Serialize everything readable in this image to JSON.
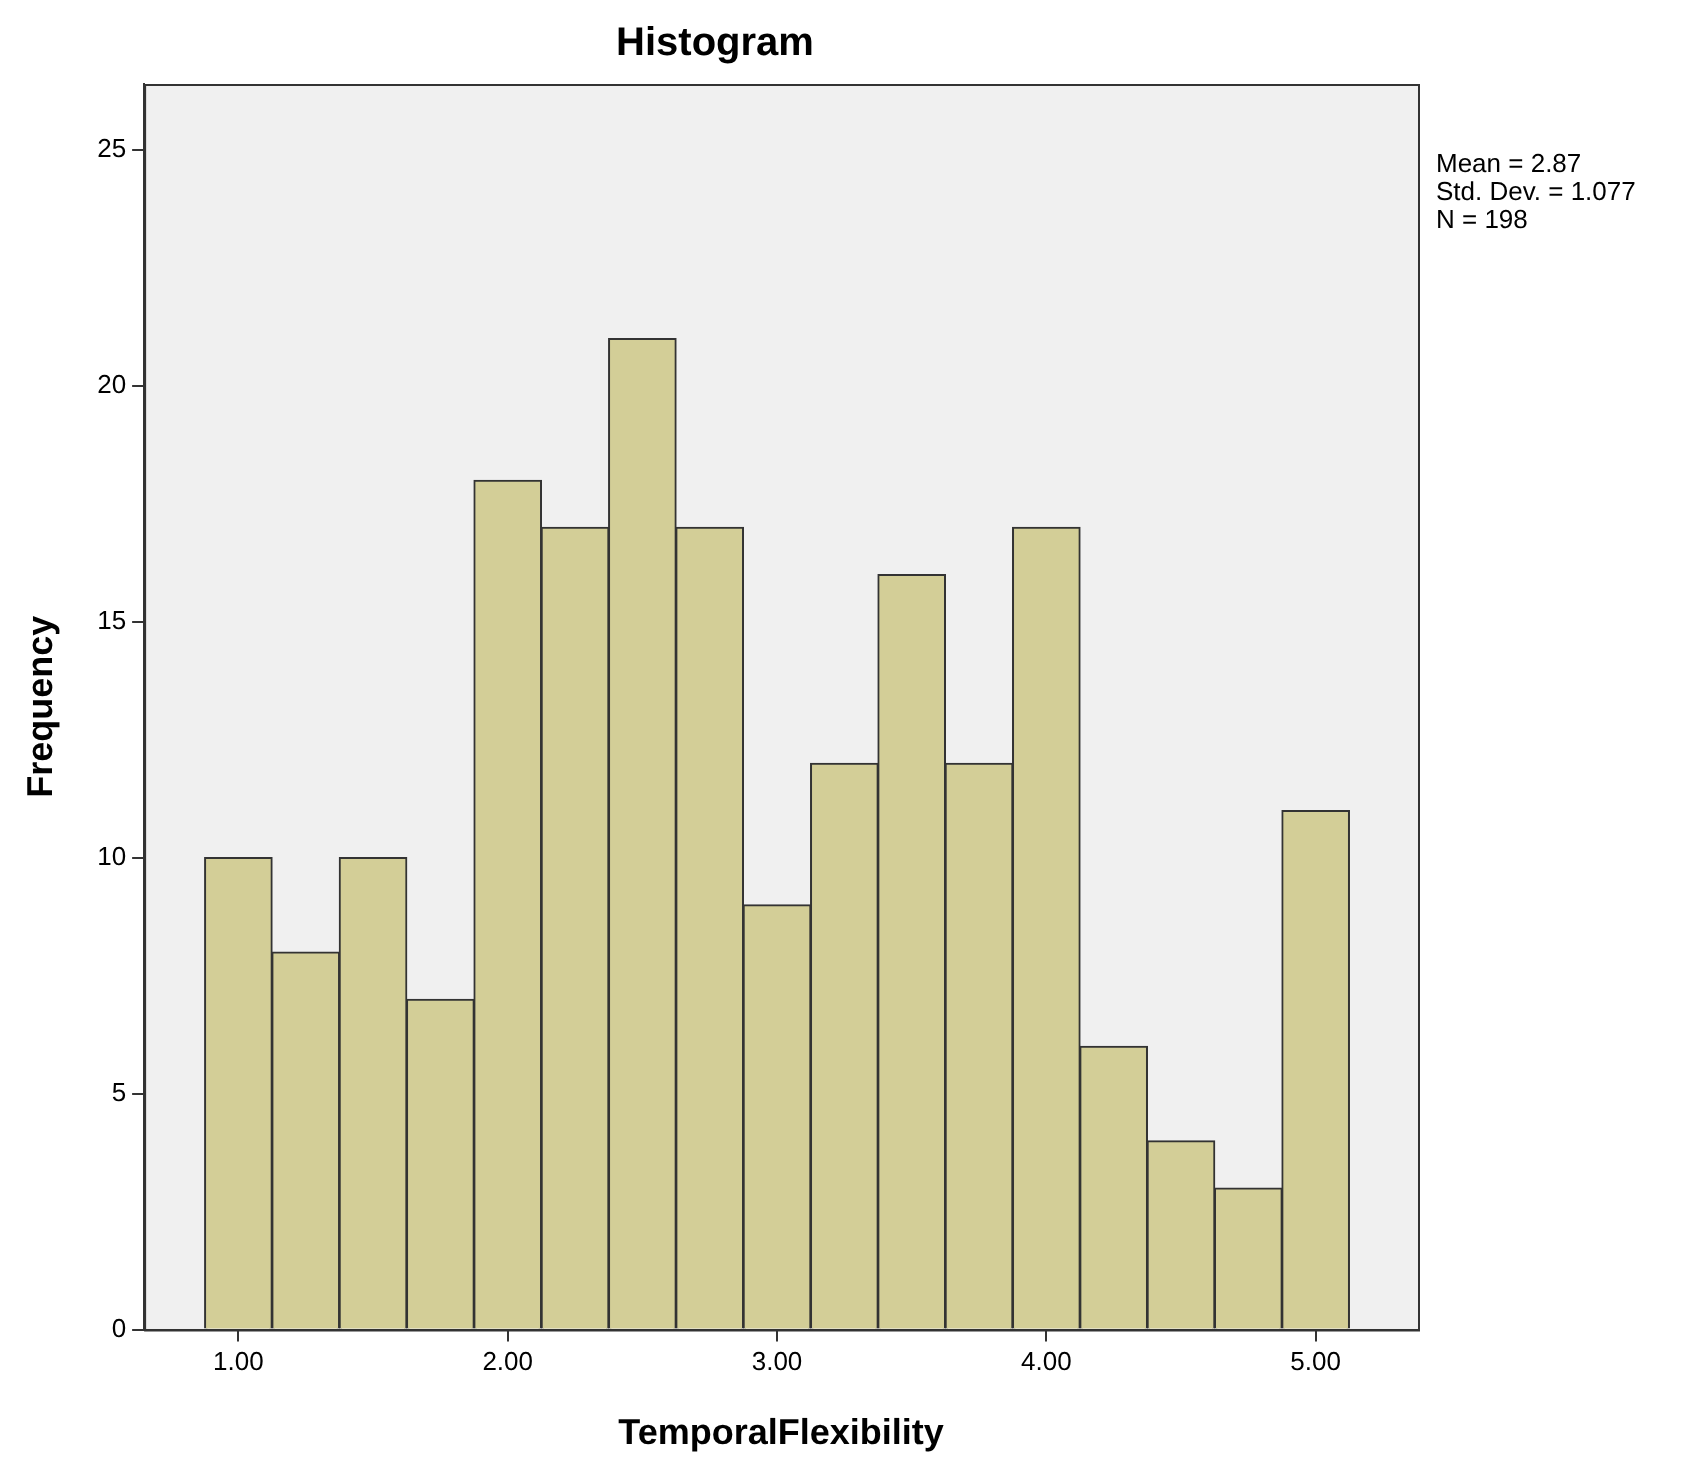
{
  "chart_data": {
    "type": "histogram",
    "title": "Histogram",
    "xlabel": "TemporalFlexibility",
    "ylabel": "Frequency",
    "bins": [
      0.875,
      1.125,
      1.375,
      1.625,
      1.875,
      2.125,
      2.375,
      2.625,
      2.875,
      3.125,
      3.375,
      3.625,
      3.875,
      4.125,
      4.375,
      4.625,
      4.875,
      5.125
    ],
    "values": [
      10,
      8,
      10,
      7,
      18,
      17,
      21,
      17,
      9,
      12,
      16,
      12,
      17,
      6,
      4,
      3,
      11
    ],
    "color": "#d3ce97",
    "xlim": [
      0.65,
      5.38
    ],
    "xticks": [
      {
        "value": 1,
        "label": "1.00"
      },
      {
        "value": 2,
        "label": "2.00"
      },
      {
        "value": 3,
        "label": "3.00"
      },
      {
        "value": 4,
        "label": "4.00"
      },
      {
        "value": 5,
        "label": "5.00"
      }
    ],
    "ylim": [
      0,
      26.4
    ],
    "yticks": [
      0,
      5,
      10,
      15,
      20,
      25
    ],
    "grid": false,
    "legend": false,
    "annotations": [
      "Mean = 2.87",
      "Std. Dev. = 1.077",
      "N = 198"
    ]
  }
}
